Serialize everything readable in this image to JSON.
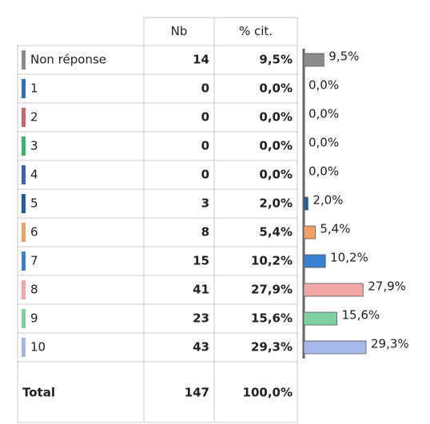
{
  "chart_data": {
    "type": "bar",
    "horizontal": true,
    "columns": [
      "Nb",
      "% cit."
    ],
    "categories": [
      "Non réponse",
      "1",
      "2",
      "3",
      "4",
      "5",
      "6",
      "7",
      "8",
      "9",
      "10"
    ],
    "counts": [
      14,
      0,
      0,
      0,
      0,
      3,
      8,
      15,
      41,
      23,
      43
    ],
    "values": [
      9.5,
      0,
      0,
      0,
      0,
      2.0,
      5.4,
      10.2,
      27.9,
      15.6,
      29.3
    ],
    "value_labels": [
      "9,5%",
      "0,0%",
      "0,0%",
      "0,0%",
      "0,0%",
      "2,0%",
      "5,4%",
      "10,2%",
      "27,9%",
      "15,6%",
      "29,3%"
    ],
    "colors": [
      "#8c8c8c",
      "#2e6fc0",
      "#d0606a",
      "#3cb371",
      "#3b5fc0",
      "#1f5fa0",
      "#f0a060",
      "#3a80d0",
      "#f2a8a8",
      "#7dd0a0",
      "#a8b8e8"
    ],
    "total_label": "Total",
    "total_count": 147,
    "total_value": 100,
    "total_value_label": "100,0%"
  }
}
